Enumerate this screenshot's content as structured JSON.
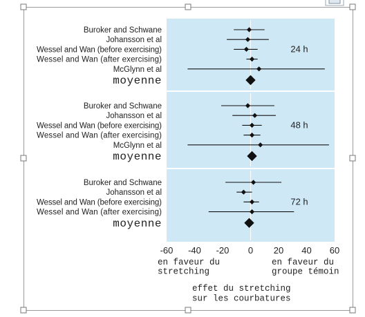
{
  "colors": {
    "panel_background": "#cfe8f6",
    "marker": "#111111",
    "line": "#111111",
    "frame": "#9a9a9a"
  },
  "icons": [
    "corner-handle-icon",
    "edit-badge-icon"
  ],
  "chart_data": {
    "type": "forest",
    "xlim": [
      -60,
      60
    ],
    "xticks": [
      "-60",
      "-40",
      "-20",
      "0",
      "20",
      "40",
      "60"
    ],
    "x_caption_left": [
      "en faveur du",
      "stretching"
    ],
    "x_caption_right": [
      "en faveur du",
      "groupe témoin"
    ],
    "xlabel": [
      "effet du stretching",
      "sur les courbatures"
    ],
    "panels": [
      {
        "label": "24 h",
        "studies": [
          {
            "name": "Buroker and Schwane",
            "estimate": -1,
            "lower": -12,
            "upper": 10
          },
          {
            "name": "Johansson et al",
            "estimate": -2,
            "lower": -17,
            "upper": 13
          },
          {
            "name": "Wessel and Wan (before exercising)",
            "estimate": -3,
            "lower": -12,
            "upper": 5
          },
          {
            "name": "Wessel and Wan (after exercising)",
            "estimate": 1,
            "lower": -3,
            "upper": 5
          },
          {
            "name": "McGlynn et al",
            "estimate": 6,
            "lower": -45,
            "upper": 53
          }
        ],
        "summary": {
          "name": "moyenne",
          "estimate": 0
        }
      },
      {
        "label": "48 h",
        "studies": [
          {
            "name": "Buroker and Schwane",
            "estimate": -2,
            "lower": -21,
            "upper": 17
          },
          {
            "name": "Johansson et al",
            "estimate": 3,
            "lower": -13,
            "upper": 18
          },
          {
            "name": "Wessel and Wan (before exercising)",
            "estimate": 1,
            "lower": -6,
            "upper": 8
          },
          {
            "name": "Wessel and Wan (after exercising)",
            "estimate": 1,
            "lower": -5,
            "upper": 7
          },
          {
            "name": "McGlynn et al",
            "estimate": 7,
            "lower": -45,
            "upper": 56
          }
        ],
        "summary": {
          "name": "moyenne",
          "estimate": 1
        }
      },
      {
        "label": "72 h",
        "studies": [
          {
            "name": "Buroker and Schwane",
            "estimate": 2,
            "lower": -18,
            "upper": 22
          },
          {
            "name": "Johansson et al",
            "estimate": -5,
            "lower": -10,
            "upper": 1
          },
          {
            "name": "Wessel and Wan (before exercising)",
            "estimate": 1,
            "lower": -5,
            "upper": 6
          },
          {
            "name": "Wessel and Wan (after exercising)",
            "estimate": 1,
            "lower": -30,
            "upper": 31
          }
        ],
        "summary": {
          "name": "moyenne",
          "estimate": -1
        }
      }
    ]
  }
}
